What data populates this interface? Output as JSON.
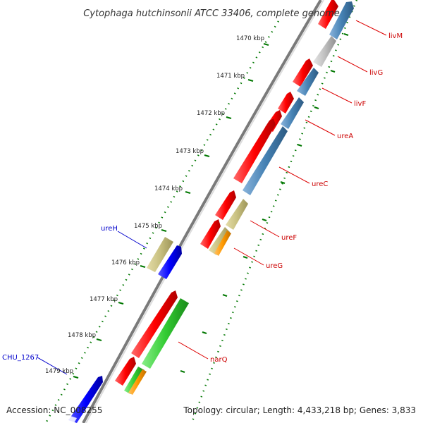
{
  "title": "Cytophaga hutchinsonii ATCC 33406, complete genome",
  "footer": {
    "accession": "Accession: NC_008255",
    "topology": "Topology: circular; Length: 4,433,218 bp; Genes: 3,833"
  },
  "kbp_ticks": [
    "1470 kbp",
    "1471 kbp",
    "1472 kbp",
    "1473 kbp",
    "1474 kbp",
    "1475 kbp",
    "1476 kbp",
    "1477 kbp",
    "1478 kbp",
    "1479 kbp"
  ],
  "gene_labels": [
    {
      "text": "livM",
      "color": "#cc0000"
    },
    {
      "text": "livG",
      "color": "#cc0000"
    },
    {
      "text": "livF",
      "color": "#cc0000"
    },
    {
      "text": "ureA",
      "color": "#cc0000"
    },
    {
      "text": "ureC",
      "color": "#cc0000"
    },
    {
      "text": "ureF",
      "color": "#cc0000"
    },
    {
      "text": "ureG",
      "color": "#cc0000"
    },
    {
      "text": "narQ",
      "color": "#cc0000"
    },
    {
      "text": "ureH",
      "color": "#0000cc"
    },
    {
      "text": "CHU_1267",
      "color": "#0000cc"
    }
  ],
  "colors": {
    "cds": "#ff0000",
    "blue_feature": "#0000ff",
    "steel_blue": "#4682b4",
    "khaki": "#c8c080",
    "gray": "#c0c0c0",
    "green": "#33cc33",
    "orange": "#ff9900",
    "backbone": "#808080",
    "ruler": "#007700"
  }
}
